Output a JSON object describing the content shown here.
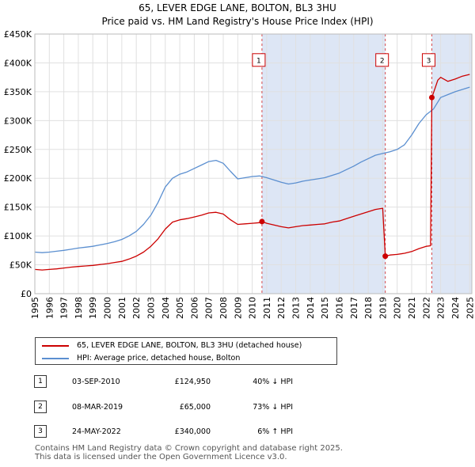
{
  "chart_data": {
    "type": "line",
    "title": "65, LEVER EDGE LANE, BOLTON, BL3 3HU",
    "subtitle": "Price paid vs. HM Land Registry's House Price Index (HPI)",
    "xlim": [
      1995,
      2025.15
    ],
    "ylim": [
      0,
      450000
    ],
    "y_ticks": [
      0,
      50000,
      100000,
      150000,
      200000,
      250000,
      300000,
      350000,
      400000,
      450000
    ],
    "y_tick_labels": [
      "£0",
      "£50K",
      "£100K",
      "£150K",
      "£200K",
      "£250K",
      "£300K",
      "£350K",
      "£400K",
      "£450K"
    ],
    "x_ticks": [
      1995,
      1996,
      1997,
      1998,
      1999,
      2000,
      2001,
      2002,
      2003,
      2004,
      2005,
      2006,
      2007,
      2008,
      2009,
      2010,
      2011,
      2012,
      2013,
      2014,
      2015,
      2016,
      2017,
      2018,
      2019,
      2020,
      2021,
      2022,
      2023,
      2024,
      2025
    ],
    "x_tick_labels": [
      "1995",
      "1996",
      "1997",
      "1998",
      "1999",
      "2000",
      "2001",
      "2002",
      "2003",
      "2004",
      "2005",
      "2006",
      "2007",
      "2008",
      "2009",
      "2010",
      "2011",
      "2012",
      "2013",
      "2014",
      "2015",
      "2016",
      "2017",
      "2018",
      "2019",
      "2020",
      "2021",
      "2022",
      "2023",
      "2024",
      "2025"
    ],
    "grid": true,
    "colors": {
      "property": "#cc0000",
      "hpi": "#5b8fd0",
      "shade": "#dde6f5",
      "vline": "#cc0000"
    },
    "series": [
      {
        "name": "65, LEVER EDGE LANE, BOLTON, BL3 3HU (detached house)",
        "color": "#cc0000",
        "points": [
          [
            1995.0,
            42000
          ],
          [
            1995.5,
            41000
          ],
          [
            1996.0,
            42000
          ],
          [
            1996.5,
            43000
          ],
          [
            1997.0,
            44500
          ],
          [
            1997.5,
            46000
          ],
          [
            1998.0,
            47000
          ],
          [
            1998.5,
            48000
          ],
          [
            1999.0,
            49000
          ],
          [
            1999.5,
            50500
          ],
          [
            2000.0,
            52000
          ],
          [
            2000.5,
            54000
          ],
          [
            2001.0,
            56000
          ],
          [
            2001.5,
            60000
          ],
          [
            2002.0,
            65000
          ],
          [
            2002.5,
            72000
          ],
          [
            2003.0,
            82000
          ],
          [
            2003.5,
            95000
          ],
          [
            2004.0,
            112000
          ],
          [
            2004.5,
            124000
          ],
          [
            2005.0,
            128000
          ],
          [
            2005.5,
            130000
          ],
          [
            2006.0,
            133000
          ],
          [
            2006.5,
            136000
          ],
          [
            2007.0,
            140000
          ],
          [
            2007.5,
            141000
          ],
          [
            2008.0,
            138000
          ],
          [
            2008.5,
            128000
          ],
          [
            2009.0,
            120000
          ],
          [
            2009.5,
            121000
          ],
          [
            2010.0,
            122000
          ],
          [
            2010.5,
            123000
          ],
          [
            2010.67,
            124950
          ],
          [
            2011.0,
            122000
          ],
          [
            2011.5,
            119000
          ],
          [
            2012.0,
            116000
          ],
          [
            2012.5,
            114000
          ],
          [
            2013.0,
            116000
          ],
          [
            2013.5,
            118000
          ],
          [
            2014.0,
            119000
          ],
          [
            2014.5,
            120000
          ],
          [
            2015.0,
            121000
          ],
          [
            2015.5,
            124000
          ],
          [
            2016.0,
            126000
          ],
          [
            2016.5,
            130000
          ],
          [
            2017.0,
            134000
          ],
          [
            2017.5,
            138000
          ],
          [
            2018.0,
            142000
          ],
          [
            2018.5,
            146000
          ],
          [
            2019.0,
            148000
          ],
          [
            2019.18,
            65000
          ],
          [
            2019.5,
            67000
          ],
          [
            2020.0,
            68000
          ],
          [
            2020.5,
            70000
          ],
          [
            2021.0,
            73000
          ],
          [
            2021.5,
            78000
          ],
          [
            2022.0,
            82000
          ],
          [
            2022.3,
            83000
          ],
          [
            2022.39,
            340000
          ],
          [
            2022.6,
            355000
          ],
          [
            2022.8,
            370000
          ],
          [
            2023.0,
            375000
          ],
          [
            2023.5,
            368000
          ],
          [
            2024.0,
            372000
          ],
          [
            2024.5,
            377000
          ],
          [
            2025.0,
            380000
          ]
        ]
      },
      {
        "name": "HPI: Average price, detached house, Bolton",
        "color": "#5b8fd0",
        "points": [
          [
            1995.0,
            72000
          ],
          [
            1995.5,
            71000
          ],
          [
            1996.0,
            72000
          ],
          [
            1996.5,
            73500
          ],
          [
            1997.0,
            75000
          ],
          [
            1997.5,
            77000
          ],
          [
            1998.0,
            79000
          ],
          [
            1998.5,
            80500
          ],
          [
            1999.0,
            82000
          ],
          [
            1999.5,
            84500
          ],
          [
            2000.0,
            87000
          ],
          [
            2000.5,
            90000
          ],
          [
            2001.0,
            94000
          ],
          [
            2001.5,
            100000
          ],
          [
            2002.0,
            108000
          ],
          [
            2002.5,
            120000
          ],
          [
            2003.0,
            136000
          ],
          [
            2003.5,
            158000
          ],
          [
            2004.0,
            185000
          ],
          [
            2004.5,
            200000
          ],
          [
            2005.0,
            207000
          ],
          [
            2005.5,
            211000
          ],
          [
            2006.0,
            217000
          ],
          [
            2006.5,
            223000
          ],
          [
            2007.0,
            229000
          ],
          [
            2007.5,
            231000
          ],
          [
            2008.0,
            226000
          ],
          [
            2008.5,
            212000
          ],
          [
            2009.0,
            199000
          ],
          [
            2009.5,
            201000
          ],
          [
            2010.0,
            203000
          ],
          [
            2010.5,
            204000
          ],
          [
            2011.0,
            201000
          ],
          [
            2011.5,
            197000
          ],
          [
            2012.0,
            193000
          ],
          [
            2012.5,
            190000
          ],
          [
            2013.0,
            192000
          ],
          [
            2013.5,
            195000
          ],
          [
            2014.0,
            197000
          ],
          [
            2014.5,
            199000
          ],
          [
            2015.0,
            201000
          ],
          [
            2015.5,
            205000
          ],
          [
            2016.0,
            209000
          ],
          [
            2016.5,
            215000
          ],
          [
            2017.0,
            221000
          ],
          [
            2017.5,
            228000
          ],
          [
            2018.0,
            234000
          ],
          [
            2018.5,
            240000
          ],
          [
            2019.0,
            243000
          ],
          [
            2019.5,
            246000
          ],
          [
            2020.0,
            250000
          ],
          [
            2020.5,
            258000
          ],
          [
            2021.0,
            275000
          ],
          [
            2021.5,
            295000
          ],
          [
            2022.0,
            310000
          ],
          [
            2022.5,
            320000
          ],
          [
            2023.0,
            340000
          ],
          [
            2023.5,
            345000
          ],
          [
            2024.0,
            350000
          ],
          [
            2024.5,
            354000
          ],
          [
            2025.0,
            358000
          ]
        ]
      }
    ],
    "transactions": [
      {
        "label": "1",
        "x": 2010.67,
        "value": 124950
      },
      {
        "label": "2",
        "x": 2019.18,
        "value": 65000
      },
      {
        "label": "3",
        "x": 2022.39,
        "value": 340000
      }
    ],
    "marker_label_value": 405000,
    "shaded_ranges": [
      [
        2010.67,
        2019.18
      ],
      [
        2022.39,
        2025.15
      ]
    ]
  },
  "legend": {
    "property": "65, LEVER EDGE LANE, BOLTON, BL3 3HU (detached house)",
    "hpi": "HPI: Average price, detached house, Bolton"
  },
  "transactions_table": [
    {
      "num": "1",
      "date": "03-SEP-2010",
      "price": "£124,950",
      "hpi": "40% ↓ HPI"
    },
    {
      "num": "2",
      "date": "08-MAR-2019",
      "price": "£65,000",
      "hpi": "73% ↓ HPI"
    },
    {
      "num": "3",
      "date": "24-MAY-2022",
      "price": "£340,000",
      "hpi": "6% ↑ HPI"
    }
  ],
  "footer": {
    "line1": "Contains HM Land Registry data © Crown copyright and database right 2025.",
    "line2": "This data is licensed under the Open Government Licence v3.0."
  }
}
